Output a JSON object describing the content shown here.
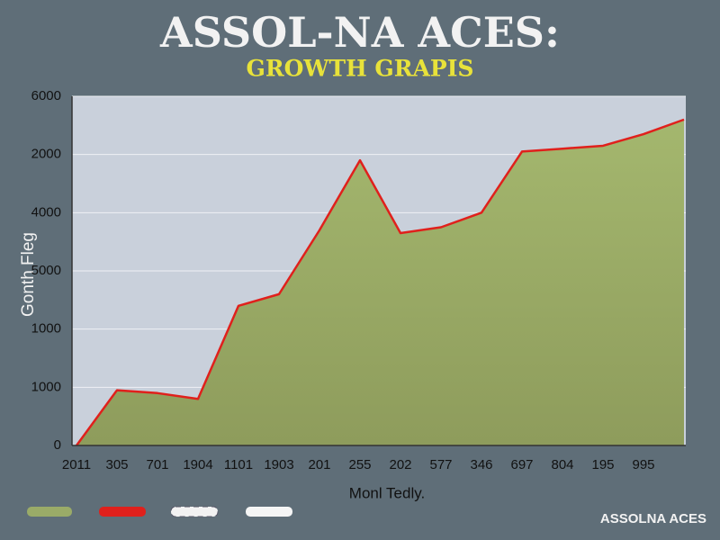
{
  "chart_data": {
    "type": "area",
    "title": "ASSOL-NA ACES:",
    "subtitle": "GROWTH GRAPIS",
    "y_label": "Gonth Fleg",
    "x_label": "Monl Tedly.",
    "footer": "ASSOLNA ACES",
    "categories": [
      "2011",
      "305",
      "701",
      "1904",
      "1101",
      "1903",
      "201",
      "255",
      "202",
      "577",
      "346",
      "697",
      "804",
      "195",
      "995",
      null
    ],
    "values": [
      0,
      950,
      900,
      800,
      2400,
      2600,
      3700,
      4900,
      3650,
      3750,
      4000,
      5050,
      5100,
      5150,
      5350,
      5600
    ],
    "line_color": "#e0201c",
    "fill_color": "#9aab68",
    "ylim": [
      0,
      6000
    ],
    "yticks": [
      0,
      1000,
      {
        "value": 2000,
        "label": "1000"
      },
      {
        "value": 3000,
        "label": "5000"
      },
      4000,
      {
        "value": 5000,
        "label": "2000"
      },
      6000
    ],
    "grid": true
  }
}
